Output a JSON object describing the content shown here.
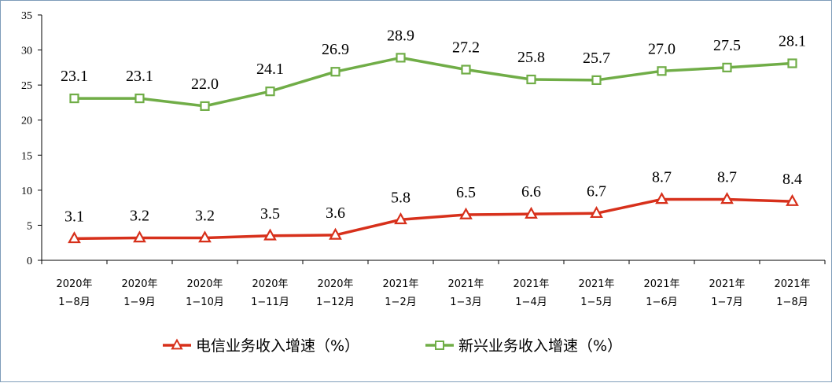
{
  "chart_data": {
    "type": "line",
    "categories": [
      [
        "2020年",
        "1−8月"
      ],
      [
        "2020年",
        "1−9月"
      ],
      [
        "2020年",
        "1−10月"
      ],
      [
        "2020年",
        "1−11月"
      ],
      [
        "2020年",
        "1−12月"
      ],
      [
        "2021年",
        "1−2月"
      ],
      [
        "2021年",
        "1−3月"
      ],
      [
        "2021年",
        "1−4月"
      ],
      [
        "2021年",
        "1−5月"
      ],
      [
        "2021年",
        "1−6月"
      ],
      [
        "2021年",
        "1−7月"
      ],
      [
        "2021年",
        "1−8月"
      ]
    ],
    "series": [
      {
        "name": "电信业务收入增速（%）",
        "color": "#d7301b",
        "marker": "triangle",
        "values": [
          3.1,
          3.2,
          3.2,
          3.5,
          3.6,
          5.8,
          6.5,
          6.6,
          6.7,
          8.7,
          8.7,
          8.4
        ],
        "labels": [
          "3.1",
          "3.2",
          "3.2",
          "3.5",
          "3.6",
          "5.8",
          "6.5",
          "6.6",
          "6.7",
          "8.7",
          "8.7",
          "8.4"
        ]
      },
      {
        "name": "新兴业务收入增速（%）",
        "color": "#70ad47",
        "marker": "square",
        "values": [
          23.1,
          23.1,
          22.0,
          24.1,
          26.9,
          28.9,
          27.2,
          25.8,
          25.7,
          27.0,
          27.5,
          28.1
        ],
        "labels": [
          "23.1",
          "23.1",
          "22.0",
          "24.1",
          "26.9",
          "28.9",
          "27.2",
          "25.8",
          "25.7",
          "27.0",
          "27.5",
          "28.1"
        ]
      }
    ],
    "ylim": [
      0,
      35
    ],
    "yticks": [
      "0",
      "5",
      "10",
      "15",
      "20",
      "25",
      "30",
      "35"
    ],
    "grid": false,
    "legend_position": "bottom"
  }
}
